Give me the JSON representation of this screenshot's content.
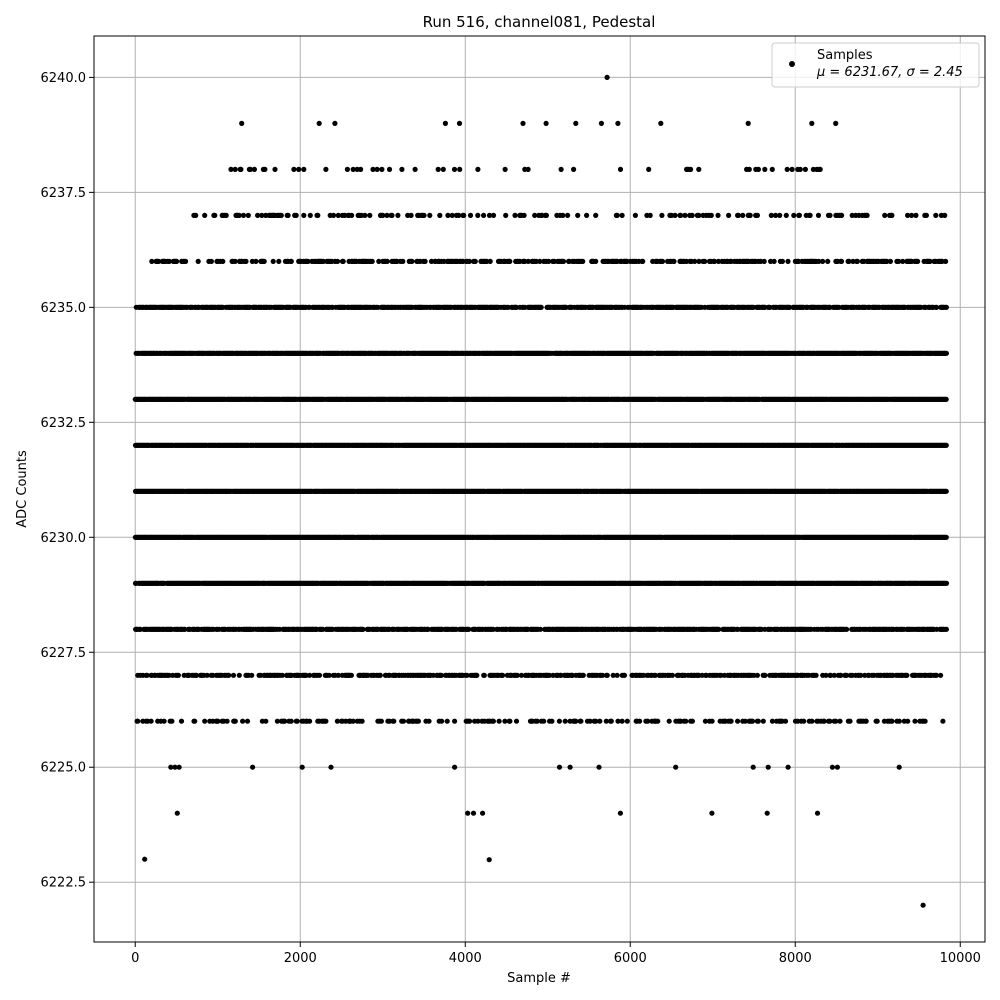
{
  "chart_data": {
    "type": "scatter",
    "title": "Run 516, channel081, Pedestal",
    "xlabel": "Sample #",
    "ylabel": "ADC Counts",
    "xlim": [
      -500,
      10300
    ],
    "ylim": [
      6221.2,
      6240.9
    ],
    "x_ticks": [
      0,
      2000,
      4000,
      6000,
      8000,
      10000
    ],
    "y_ticks": [
      6222.5,
      6225.0,
      6227.5,
      6230.0,
      6232.5,
      6235.0,
      6237.5,
      6240.0
    ],
    "x_tick_labels": [
      "0",
      "2000",
      "4000",
      "6000",
      "8000",
      "10000"
    ],
    "y_tick_labels": [
      "6222.5",
      "6225.0",
      "6227.5",
      "6230.0",
      "6232.5",
      "6235.0",
      "6237.5",
      "6240.0"
    ],
    "grid": true,
    "legend": {
      "placement": "top-right",
      "label": "Samples",
      "stats": "μ = 6231.67, σ = 2.45"
    },
    "marker_color": "#000000",
    "series": [
      {
        "name": "Samples",
        "x_range": [
          0,
          9830
        ],
        "levels": [
          {
            "y": 6229,
            "coverage": [
              [
                0,
                9830
              ]
            ],
            "density": 0.95
          },
          {
            "y": 6230,
            "coverage": [
              [
                0,
                9830
              ]
            ],
            "density": 0.98
          },
          {
            "y": 6231,
            "coverage": [
              [
                0,
                9830
              ]
            ],
            "density": 0.98
          },
          {
            "y": 6232,
            "coverage": [
              [
                0,
                9830
              ]
            ],
            "density": 0.97
          },
          {
            "y": 6233,
            "coverage": [
              [
                0,
                9830
              ]
            ],
            "density": 0.95
          },
          {
            "y": 6234,
            "coverage": [
              [
                0,
                9830
              ]
            ],
            "density": 0.9
          },
          {
            "y": 6228,
            "coverage": [
              [
                0,
                9830
              ]
            ],
            "density": 0.7
          },
          {
            "y": 6235,
            "coverage": [
              [
                0,
                9830
              ]
            ],
            "density": 0.7
          },
          {
            "y": 6227,
            "coverage": [
              [
                0,
                9830
              ]
            ],
            "density": 0.45
          },
          {
            "y": 6236,
            "coverage": [
              [
                200,
                9830
              ]
            ],
            "density": 0.35
          },
          {
            "y": 6226,
            "coverage": [
              [
                0,
                9830
              ]
            ],
            "density": 0.22
          },
          {
            "y": 6237,
            "coverage": [
              [
                700,
                9830
              ]
            ],
            "density": 0.18
          },
          {
            "y": 6238,
            "coverage": [
              [
                1050,
                8830
              ]
            ],
            "density": 0.07
          },
          {
            "y": 6225,
            "coverage": [
              [
                0,
                9730
              ]
            ],
            "density": 0.02
          }
        ],
        "outliers": [
          {
            "x": 115,
            "y": 6223
          },
          {
            "x": 4290,
            "y": 6222.99
          },
          {
            "x": 9550,
            "y": 6222
          },
          {
            "x": 510,
            "y": 6224
          },
          {
            "x": 4030,
            "y": 6224
          },
          {
            "x": 4100,
            "y": 6224
          },
          {
            "x": 4210,
            "y": 6224
          },
          {
            "x": 5880,
            "y": 6224
          },
          {
            "x": 6990,
            "y": 6224
          },
          {
            "x": 7660,
            "y": 6224
          },
          {
            "x": 8270,
            "y": 6224
          },
          {
            "x": 1290,
            "y": 6239
          },
          {
            "x": 2230,
            "y": 6239
          },
          {
            "x": 2420,
            "y": 6239
          },
          {
            "x": 3760,
            "y": 6239
          },
          {
            "x": 3930,
            "y": 6239
          },
          {
            "x": 4700,
            "y": 6239
          },
          {
            "x": 4980,
            "y": 6239
          },
          {
            "x": 5340,
            "y": 6239
          },
          {
            "x": 5650,
            "y": 6239
          },
          {
            "x": 5850,
            "y": 6239
          },
          {
            "x": 6370,
            "y": 6239
          },
          {
            "x": 7430,
            "y": 6239
          },
          {
            "x": 8200,
            "y": 6239
          },
          {
            "x": 8490,
            "y": 6239
          },
          {
            "x": 5720,
            "y": 6240
          }
        ]
      }
    ]
  }
}
